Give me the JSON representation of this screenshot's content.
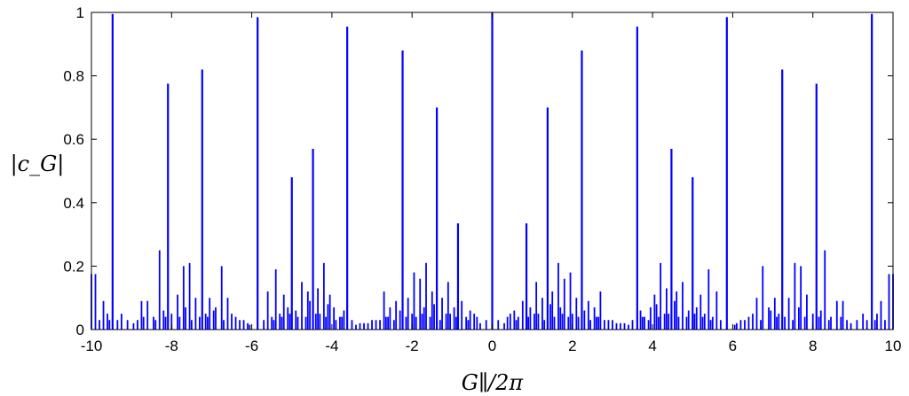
{
  "chart_data": {
    "type": "bar",
    "title": "",
    "xlabel": "G∥/2π",
    "ylabel": "|c_G|",
    "xlim": [
      -10,
      10
    ],
    "ylim": [
      0,
      1
    ],
    "xticks": [
      -10,
      -8,
      -6,
      -4,
      -2,
      0,
      2,
      4,
      6,
      8,
      10
    ],
    "yticks": [
      0,
      0.2,
      0.4,
      0.6,
      0.8,
      1
    ],
    "xtick_labels": [
      "-10",
      "-8",
      "-6",
      "-4",
      "-2",
      "0",
      "2",
      "4",
      "6",
      "8",
      "10"
    ],
    "ytick_labels": [
      "0",
      "0.2",
      "0.4",
      "0.6",
      "0.8",
      "1"
    ],
    "grid": false,
    "color": "#0000ff",
    "x": [
      0,
      0.854,
      1.382,
      2.236,
      3.618,
      4.472,
      5.0,
      5.854,
      7.236,
      8.09,
      9.472,
      0.3,
      0.55,
      0.76,
      0.95,
      1.1,
      1.25,
      1.5,
      1.65,
      1.8,
      1.95,
      2.1,
      2.4,
      2.55,
      2.7,
      2.9,
      3.2,
      3.4,
      3.8,
      4.05,
      4.2,
      4.35,
      4.6,
      4.75,
      5.2,
      5.4,
      5.6,
      6.05,
      6.4,
      6.6,
      6.75,
      6.9,
      7.05,
      7.4,
      7.55,
      7.7,
      7.85,
      8.3,
      8.6,
      8.75,
      8.95,
      9.25,
      9.7,
      9.9,
      10.0,
      0.45,
      0.65,
      0.85,
      1.05,
      1.45,
      1.7,
      2.0,
      2.3,
      2.6,
      3.0,
      3.3,
      3.7,
      3.95,
      4.1,
      4.3,
      4.55,
      4.9,
      5.1,
      5.3,
      5.5,
      6.2,
      6.5,
      6.95,
      7.15,
      7.65,
      8.2,
      8.45,
      9.1,
      9.6,
      0.15,
      0.38,
      0.6,
      0.9,
      1.15,
      1.3,
      1.55,
      1.75,
      1.9,
      2.15,
      2.45,
      2.65,
      2.8,
      3.1,
      3.5,
      3.75,
      3.9,
      4.15,
      4.4,
      4.65,
      4.85,
      5.05,
      5.25,
      5.45,
      5.7,
      6.1,
      6.3,
      6.7,
      7.1,
      7.3,
      7.5,
      7.8,
      8.0,
      8.15,
      8.4,
      8.7,
      8.85,
      9.35,
      9.55,
      9.8
    ],
    "values": [
      1.0,
      0.335,
      0.7,
      0.88,
      0.955,
      0.57,
      0.48,
      0.985,
      0.82,
      0.775,
      0.995,
      0.02,
      0.06,
      0.09,
      0.07,
      0.15,
      0.1,
      0.12,
      0.21,
      0.16,
      0.18,
      0.1,
      0.09,
      0.07,
      0.12,
      0.03,
      0.02,
      0.015,
      0.04,
      0.11,
      0.21,
      0.13,
      0.12,
      0.15,
      0.11,
      0.19,
      0.12,
      0.015,
      0.04,
      0.1,
      0.2,
      0.07,
      0.1,
      0.1,
      0.21,
      0.2,
      0.11,
      0.25,
      0.09,
      0.09,
      0.02,
      0.05,
      0.09,
      0.175,
      0.175,
      0.05,
      0.04,
      0.06,
      0.05,
      0.08,
      0.07,
      0.05,
      0.06,
      0.04,
      0.03,
      0.02,
      0.06,
      0.07,
      0.08,
      0.05,
      0.09,
      0.06,
      0.07,
      0.05,
      0.04,
      0.03,
      0.05,
      0.06,
      0.05,
      0.07,
      0.06,
      0.04,
      0.03,
      0.05,
      0.03,
      0.04,
      0.03,
      0.04,
      0.05,
      0.03,
      0.04,
      0.05,
      0.04,
      0.04,
      0.03,
      0.04,
      0.03,
      0.02,
      0.03,
      0.04,
      0.03,
      0.04,
      0.05,
      0.04,
      0.04,
      0.05,
      0.04,
      0.03,
      0.03,
      0.02,
      0.03,
      0.03,
      0.04,
      0.04,
      0.03,
      0.04,
      0.05,
      0.04,
      0.03,
      0.04,
      0.03,
      0.03,
      0.03,
      0.03
    ],
    "symmetric_about_zero": true
  }
}
